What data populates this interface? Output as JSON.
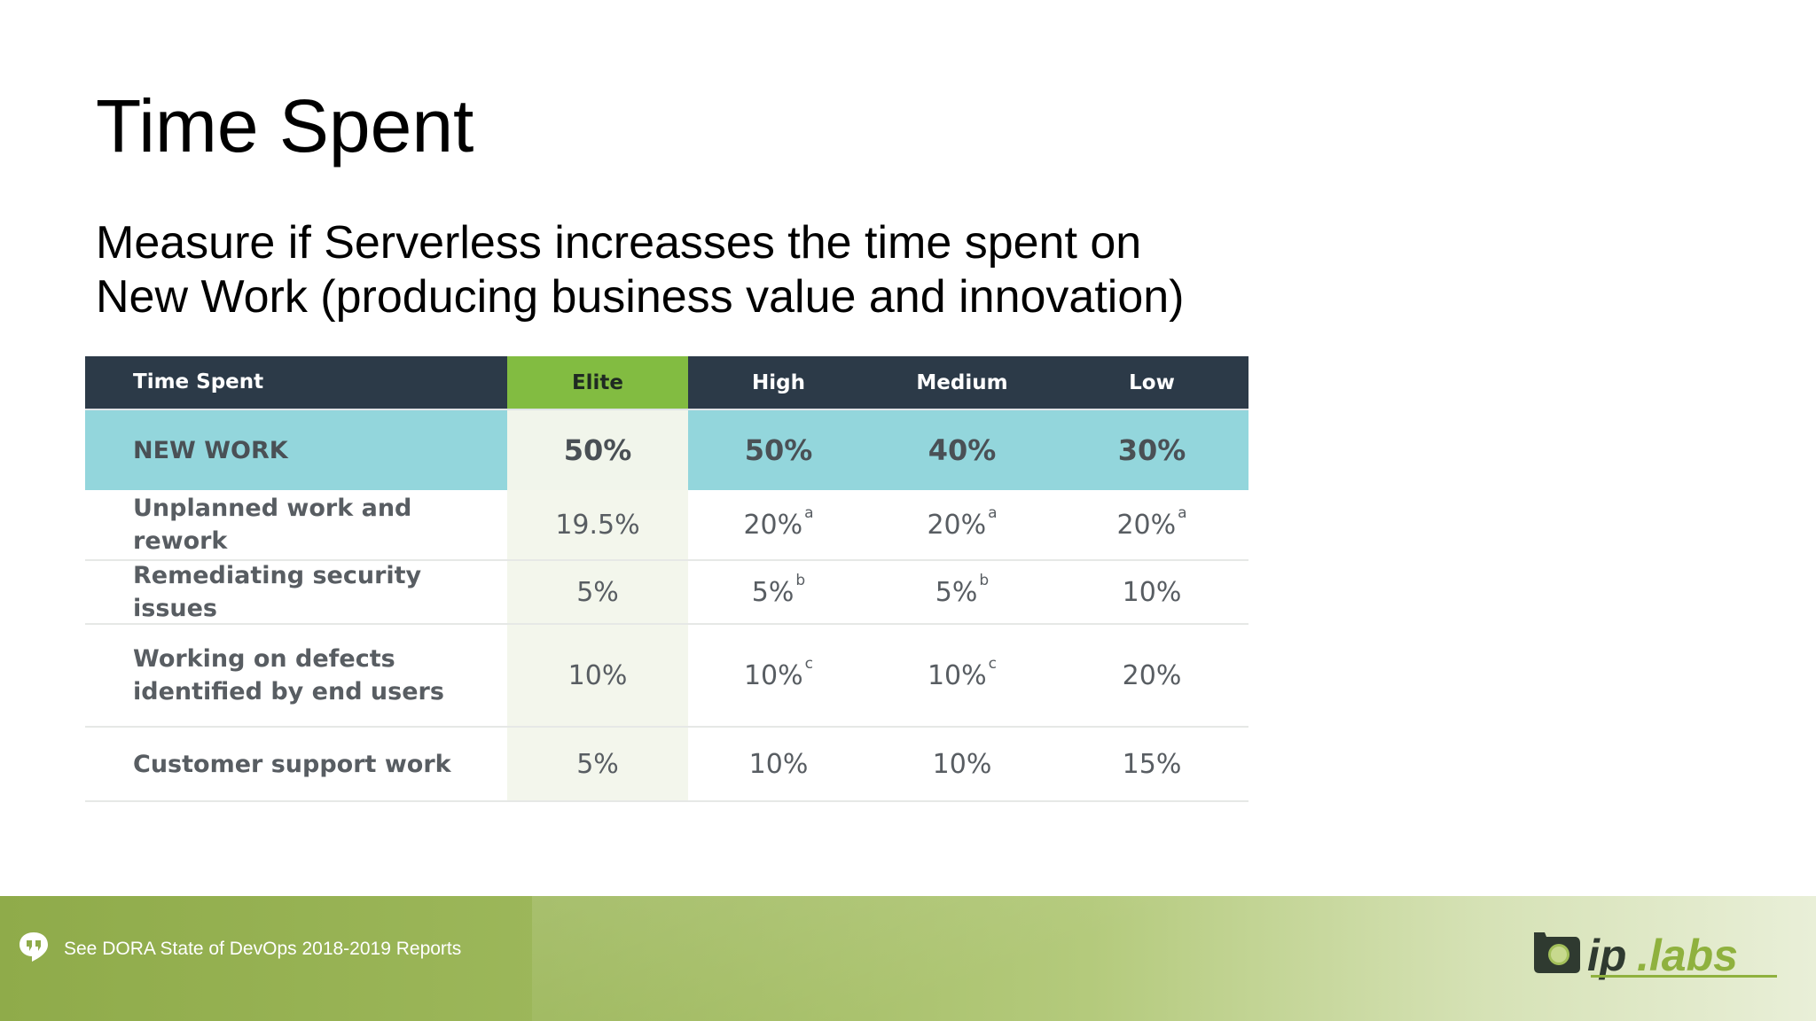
{
  "slide": {
    "title": "Time Spent",
    "subtitle_lines": [
      "Measure if Serverless increasses the time spent on",
      "New Work (producing business value and innovation)"
    ]
  },
  "table": {
    "headers": [
      "Time Spent",
      "Elite",
      "High",
      "Medium",
      "Low"
    ],
    "rows": [
      {
        "label": "NEW WORK",
        "values": [
          "50%",
          "50%",
          "40%",
          "30%"
        ],
        "notes": [
          "",
          "",
          "",
          ""
        ]
      },
      {
        "label": "Unplanned work and rework",
        "values": [
          "19.5%",
          "20%",
          "20%",
          "20%"
        ],
        "notes": [
          "",
          "a",
          "a",
          "a"
        ]
      },
      {
        "label": "Remediating security issues",
        "values": [
          "5%",
          "5%",
          "5%",
          "10%"
        ],
        "notes": [
          "",
          "b",
          "b",
          ""
        ]
      },
      {
        "label_lines": [
          "Working on defects",
          "identified by end users"
        ],
        "values": [
          "10%",
          "10%",
          "10%",
          "20%"
        ],
        "notes": [
          "",
          "c",
          "c",
          ""
        ]
      },
      {
        "label": "Customer support work",
        "values": [
          "5%",
          "10%",
          "10%",
          "15%"
        ],
        "notes": [
          "",
          "",
          "",
          ""
        ]
      }
    ]
  },
  "footer": {
    "reference": "See DORA State of DevOps 2018-2019 Reports",
    "icon": "quote-bubble-icon",
    "logo_text": "ip.labs"
  },
  "colors": {
    "header_bg": "#2c3a48",
    "elite_header_bg": "#82bc41",
    "new_work_bg": "#93d6dc",
    "footer_green": "#8fab4a"
  }
}
